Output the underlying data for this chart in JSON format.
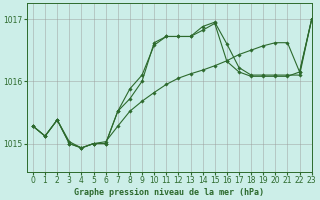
{
  "title": "Graphe pression niveau de la mer (hPa)",
  "background_color": "#cceee8",
  "grid_color": "#999999",
  "line_color": "#2d6a2d",
  "xlim": [
    -0.5,
    23
  ],
  "ylim": [
    1014.55,
    1017.25
  ],
  "yticks": [
    1015,
    1016,
    1017
  ],
  "xticks": [
    0,
    1,
    2,
    3,
    4,
    5,
    6,
    7,
    8,
    9,
    10,
    11,
    12,
    13,
    14,
    15,
    16,
    17,
    18,
    19,
    20,
    21,
    22,
    23
  ],
  "series": [
    [
      1015.28,
      1015.12,
      1015.38,
      1015.03,
      1014.93,
      1015.0,
      1015.03,
      1015.28,
      1015.52,
      1015.68,
      1015.82,
      1015.95,
      1016.05,
      1016.12,
      1016.18,
      1016.25,
      1016.33,
      1016.43,
      1016.5,
      1016.57,
      1016.62,
      1016.62,
      1016.15,
      1017.0
    ],
    [
      1015.28,
      1015.12,
      1015.38,
      1015.0,
      1014.93,
      1015.0,
      1015.0,
      1015.52,
      1015.88,
      1016.1,
      1016.58,
      1016.72,
      1016.72,
      1016.72,
      1016.82,
      1016.93,
      1016.32,
      1016.15,
      1016.08,
      1016.08,
      1016.08,
      1016.08,
      1016.15,
      1017.0
    ],
    [
      1015.28,
      1015.12,
      1015.38,
      1015.0,
      1014.93,
      1015.0,
      1015.0,
      1015.52,
      1015.72,
      1016.0,
      1016.62,
      1016.72,
      1016.72,
      1016.72,
      1016.88,
      1016.95,
      1016.6,
      1016.22,
      1016.1,
      1016.1,
      1016.1,
      1016.1,
      1016.1,
      1017.0
    ]
  ]
}
